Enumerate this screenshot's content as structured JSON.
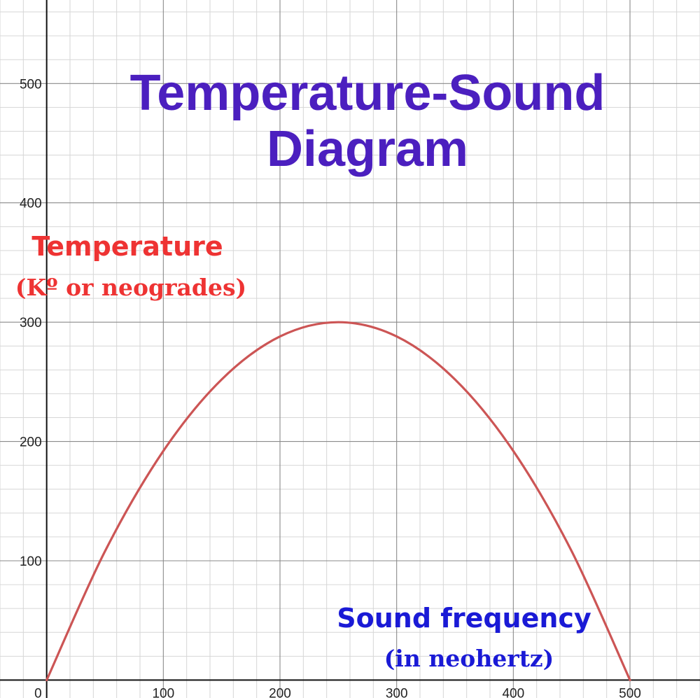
{
  "chart_data": {
    "type": "line",
    "title_lines": [
      "Temperature-Sound",
      "Diagram"
    ],
    "ylabel": {
      "main": "Temperature",
      "sub": "(Kº or neogrades)"
    },
    "xlabel": {
      "main": "Sound frequency",
      "sub": "(in neohertz)"
    },
    "xlim": [
      -40,
      560
    ],
    "ylim": [
      -15,
      570
    ],
    "x_ticks": [
      0,
      100,
      200,
      300,
      400,
      500
    ],
    "y_ticks": [
      100,
      200,
      300,
      400,
      500
    ],
    "x_tick_labels": [
      "0",
      "100",
      "200",
      "300",
      "400",
      "500"
    ],
    "y_tick_labels": [
      "100",
      "200",
      "300",
      "400",
      "500"
    ],
    "grid": true,
    "series": [
      {
        "color": "#cc5555",
        "x": [
          0,
          50,
          100,
          150,
          200,
          250,
          300,
          350,
          400,
          450,
          500
        ],
        "y": [
          0,
          108,
          192,
          252,
          288,
          300,
          288,
          252,
          192,
          108,
          0
        ]
      }
    ],
    "colors": {
      "title": "#4b1fbf",
      "ylabel": "#ee3333",
      "xlabel": "#1a1ad6",
      "curve": "#cc5555"
    }
  }
}
